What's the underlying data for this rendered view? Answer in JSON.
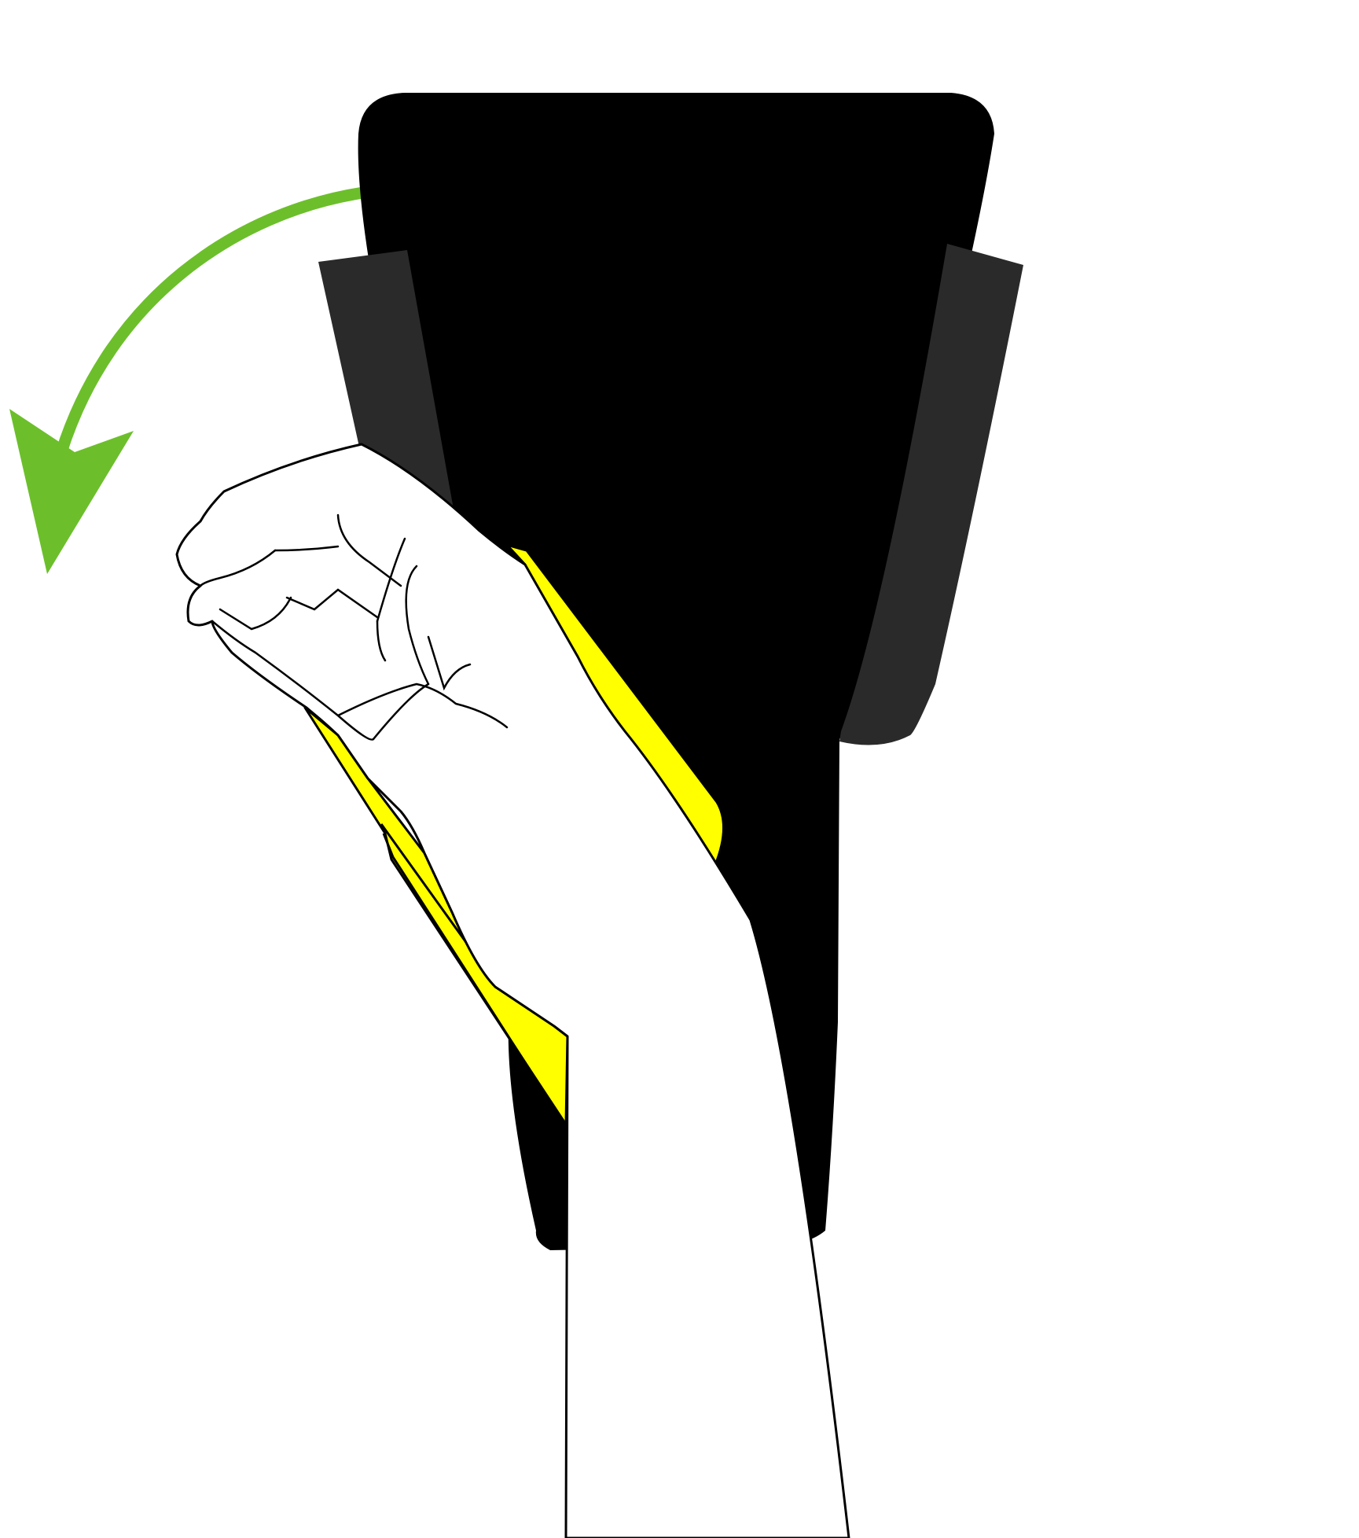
{
  "illustration": {
    "subject": "hand-removing-device-from-mount",
    "gesture": "tilt-counterclockwise"
  },
  "colors": {
    "background": "#ffffff",
    "device_body": "#000000",
    "side_pads": "#2a2a2a",
    "accent_strip": "#ffff00",
    "arrow": "#6cbf2b",
    "hand_fill": "#ffffff",
    "outline": "#000000"
  },
  "icons": {
    "direction_arrow": "curved-arrow-counterclockwise-icon"
  }
}
